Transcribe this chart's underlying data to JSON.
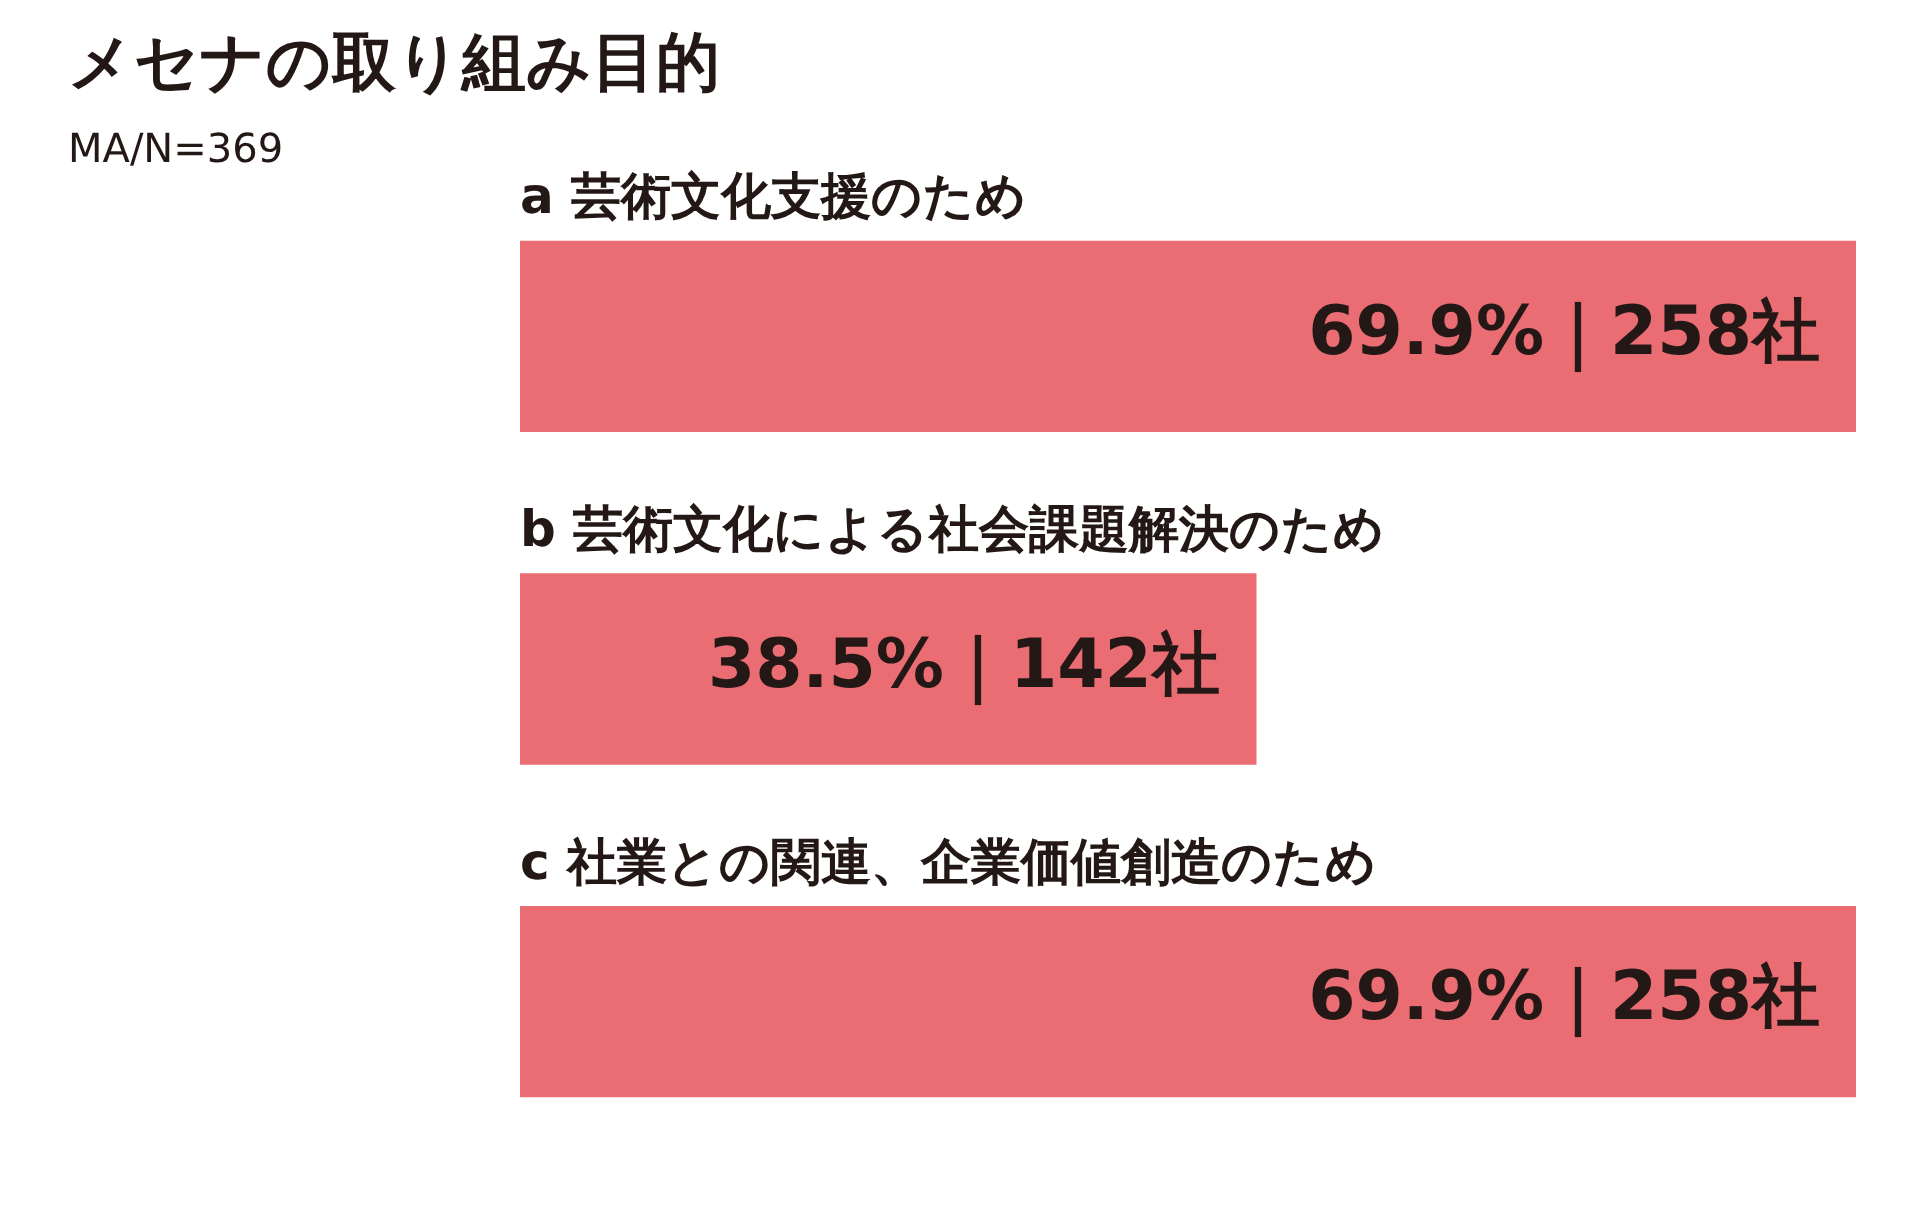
{
  "chart_data": {
    "type": "bar",
    "orientation": "horizontal",
    "title": "メセナの取り組み目的",
    "subtitle": "MA/N=369",
    "categories": [
      "a 芸術文化支援のため",
      "b 芸術文化による社会課題解決のため",
      "c 社業との関連、企業価値創造のため"
    ],
    "values": [
      69.9,
      38.5,
      69.9
    ],
    "value_labels": [
      "69.9%｜258社",
      "38.5%｜142社",
      "69.9%｜258社"
    ],
    "color": "#eb6d74",
    "xlim": [
      0,
      69.9
    ]
  }
}
